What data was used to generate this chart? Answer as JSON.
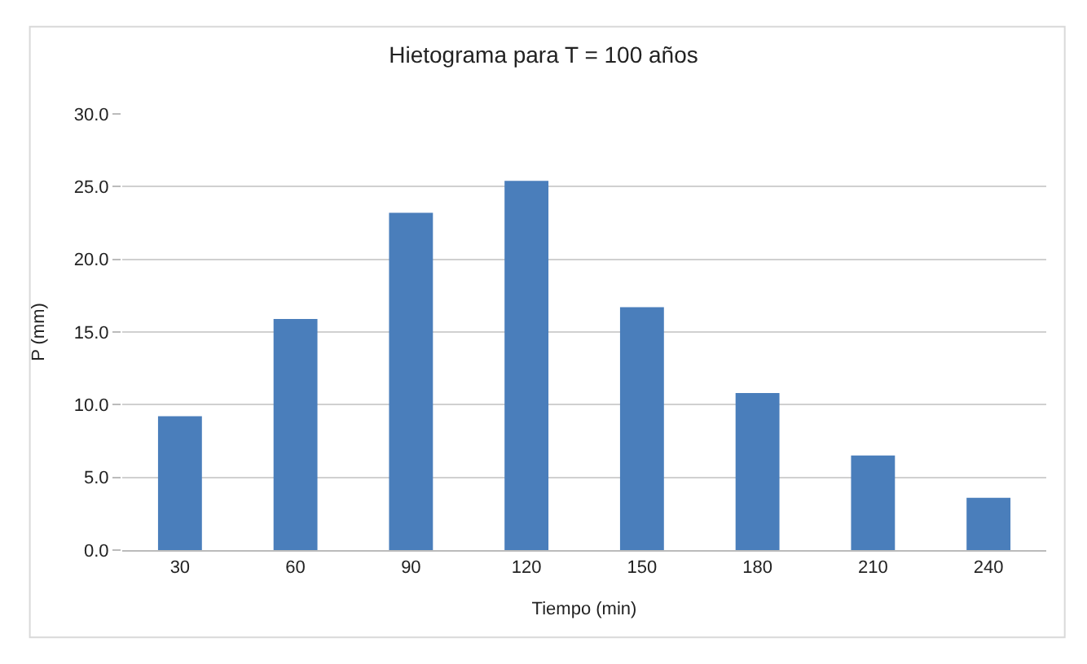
{
  "chart_data": {
    "type": "bar",
    "title": "Hietograma para T = 100 años",
    "xlabel": "Tiempo (min)",
    "ylabel": "P (mm)",
    "categories": [
      "30",
      "60",
      "90",
      "120",
      "150",
      "180",
      "210",
      "240"
    ],
    "values": [
      9.2,
      15.9,
      23.2,
      25.4,
      16.7,
      10.8,
      6.5,
      3.6
    ],
    "color": "#4a7ebb",
    "ylim": [
      0,
      30
    ],
    "yticks": [
      {
        "value": 0,
        "label": "0.0"
      },
      {
        "value": 5,
        "label": "5.0"
      },
      {
        "value": 10,
        "label": "10.0"
      },
      {
        "value": 15,
        "label": "15.0"
      },
      {
        "value": 20,
        "label": "20.0"
      },
      {
        "value": 25,
        "label": "25.0"
      },
      {
        "value": 30,
        "label": "30.0"
      }
    ],
    "grid": "y",
    "legend": false
  }
}
